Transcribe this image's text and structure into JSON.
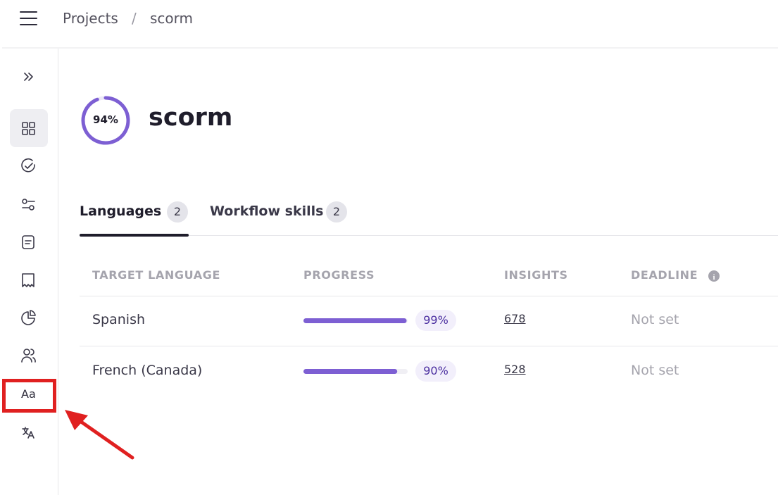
{
  "breadcrumb": {
    "items": [
      "Projects",
      "scorm"
    ],
    "separator": "/"
  },
  "sidebar": {
    "glyph": "Aa"
  },
  "project": {
    "title": "scorm",
    "progress": 94,
    "progress_label": "94%"
  },
  "tabs": [
    {
      "label": "Languages",
      "count": 2
    },
    {
      "label": "Workflow skills",
      "count": 2
    }
  ],
  "table": {
    "columns": [
      "TARGET LANGUAGE",
      "PROGRESS",
      "INSIGHTS",
      "DEADLINE"
    ],
    "rows": [
      {
        "language": "Spanish",
        "progress": 99,
        "progress_label": "99%",
        "insights": 678,
        "deadline": "Not set"
      },
      {
        "language": "French (Canada)",
        "progress": 90,
        "progress_label": "90%",
        "insights": 528,
        "deadline": "Not set"
      }
    ]
  }
}
